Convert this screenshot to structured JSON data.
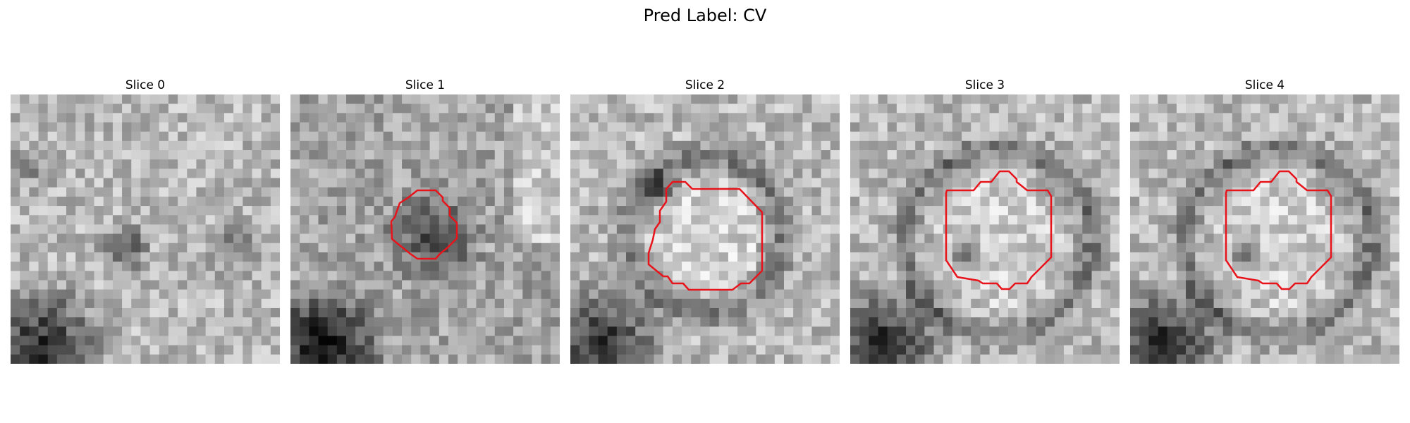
{
  "figure": {
    "suptitle": "Pred Label: CV"
  },
  "colors": {
    "contour": "#e8141c",
    "background": "#ffffff"
  },
  "panels": [
    {
      "title": "Slice 0",
      "has_contour": false
    },
    {
      "title": "Slice 1",
      "has_contour": true
    },
    {
      "title": "Slice 2",
      "has_contour": true
    },
    {
      "title": "Slice 3",
      "has_contour": true
    },
    {
      "title": "Slice 4",
      "has_contour": true
    }
  ]
}
